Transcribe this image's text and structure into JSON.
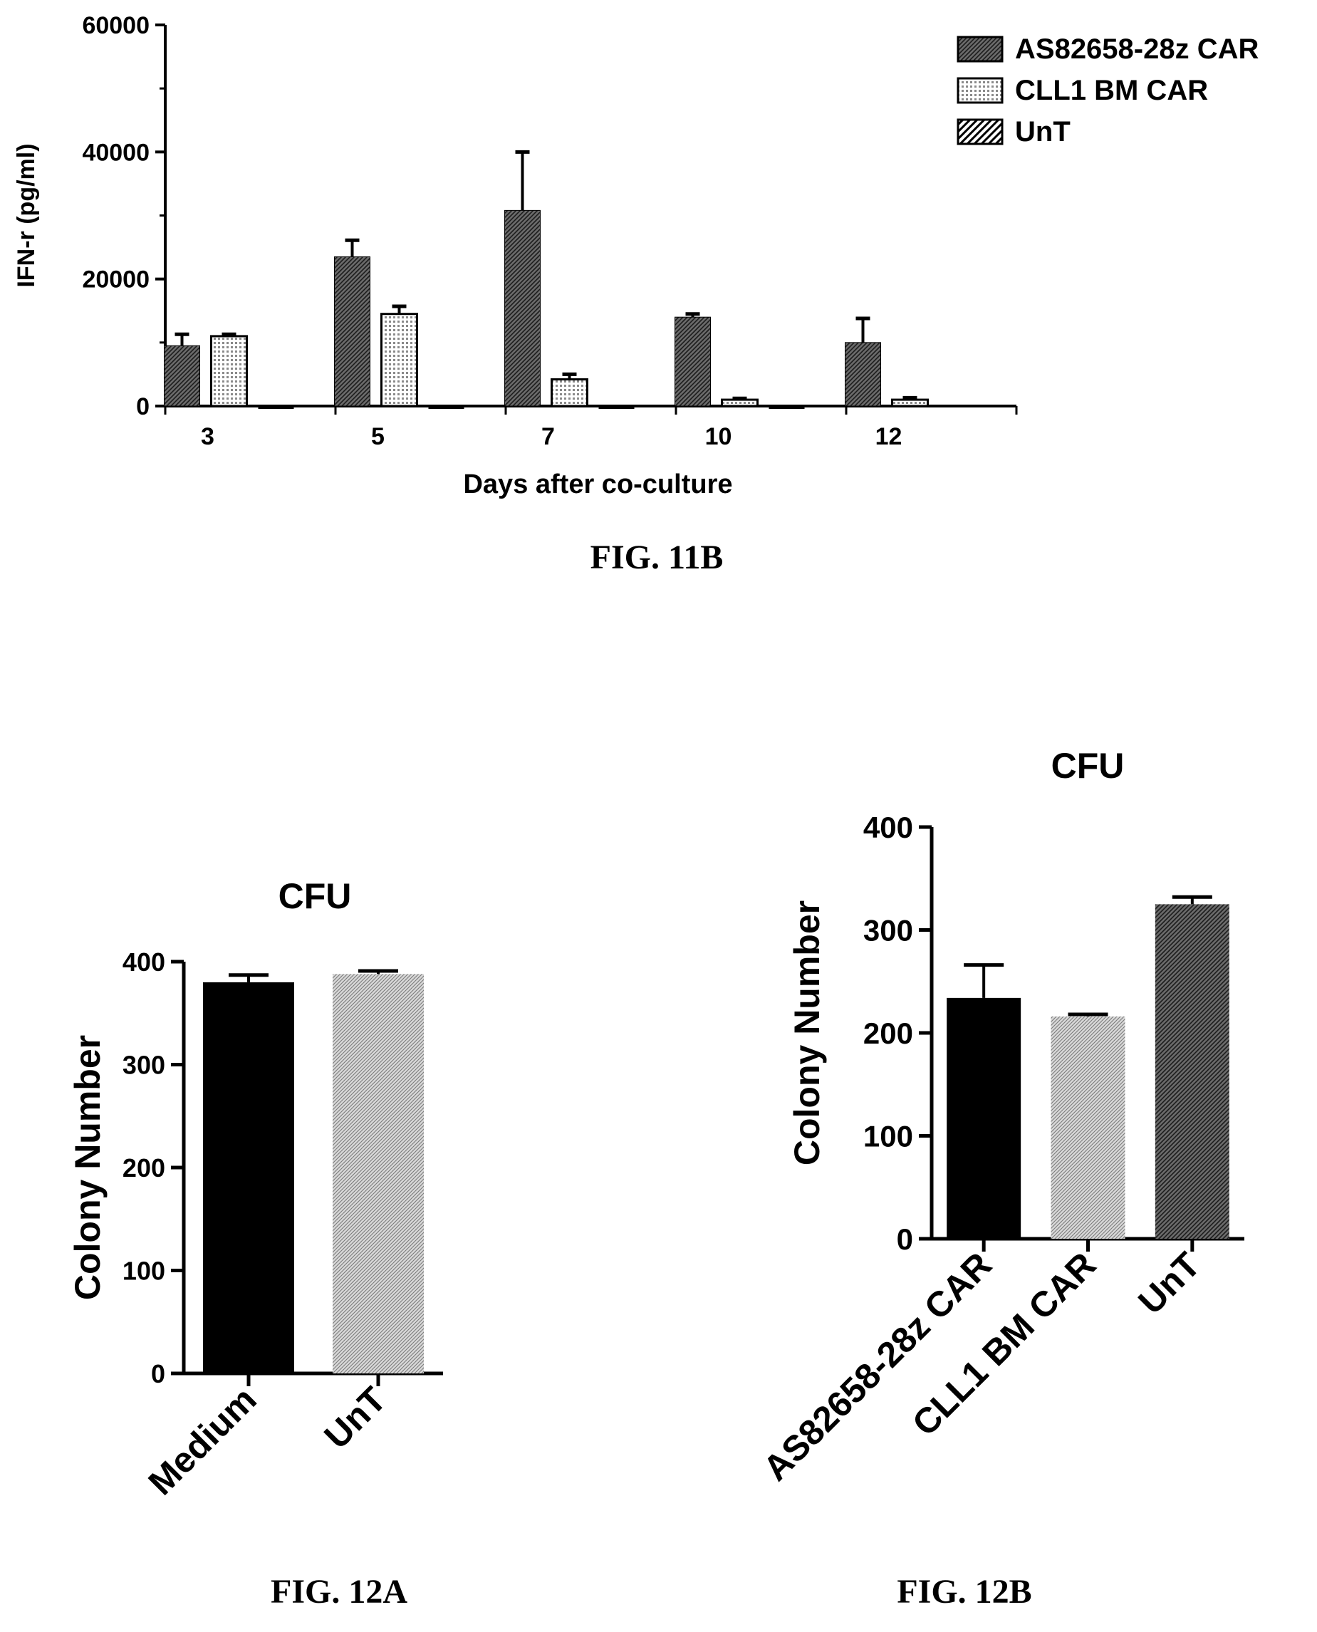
{
  "figures": [
    {
      "id": "fig11b",
      "caption": "FIG. 11B"
    },
    {
      "id": "fig12a",
      "caption": "FIG. 12A"
    },
    {
      "id": "fig12b",
      "caption": "FIG. 12B"
    }
  ],
  "chart_data": [
    {
      "id": "fig11b",
      "type": "bar",
      "title": "",
      "xlabel": "Days after co-culture",
      "ylabel": "IFN-r (pg/ml)",
      "categories": [
        "3",
        "5",
        "7",
        "10",
        "12"
      ],
      "ylim": [
        0,
        60000
      ],
      "yticks": [
        0,
        20000,
        40000,
        60000
      ],
      "ytick_labels": [
        "0",
        "20000",
        "40000",
        "60000"
      ],
      "legend_position": "top-right",
      "series": [
        {
          "name": "AS82658-28z CAR",
          "pattern": "dense-hatch",
          "values": [
            9500,
            23500,
            30800,
            14000,
            10000
          ],
          "errors": [
            1800,
            2600,
            9200,
            500,
            3800
          ]
        },
        {
          "name": "CLL1 BM CAR",
          "pattern": "open",
          "values": [
            11000,
            14500,
            4200,
            1000,
            1000
          ],
          "errors": [
            300,
            1200,
            800,
            200,
            300
          ]
        },
        {
          "name": "UnT",
          "pattern": "diagonal-hatch",
          "values": [
            -200,
            -200,
            -200,
            -200,
            null
          ],
          "errors": [
            0,
            0,
            0,
            0,
            0
          ]
        }
      ]
    },
    {
      "id": "fig12a",
      "type": "bar",
      "title": "CFU",
      "xlabel": "",
      "ylabel": "Colony Number",
      "categories": [
        "Medium",
        "UnT"
      ],
      "values": [
        380,
        388
      ],
      "errors": [
        7,
        3
      ],
      "patterns": [
        "solid",
        "light-hatch"
      ],
      "ylim": [
        0,
        400
      ],
      "yticks": [
        0,
        100,
        200,
        300,
        400
      ],
      "ytick_labels": [
        "0",
        "100",
        "200",
        "300",
        "400"
      ]
    },
    {
      "id": "fig12b",
      "type": "bar",
      "title": "CFU",
      "xlabel": "",
      "ylabel": "Colony Number",
      "categories": [
        "AS82658-28z CAR",
        "CLL1 BM CAR",
        "UnT"
      ],
      "values": [
        234,
        216,
        325
      ],
      "errors": [
        32,
        2,
        7
      ],
      "patterns": [
        "solid",
        "light-hatch",
        "dense-hatch"
      ],
      "ylim": [
        0,
        400
      ],
      "yticks": [
        0,
        100,
        200,
        300,
        400
      ],
      "ytick_labels": [
        "0",
        "100",
        "200",
        "300",
        "400"
      ]
    }
  ]
}
